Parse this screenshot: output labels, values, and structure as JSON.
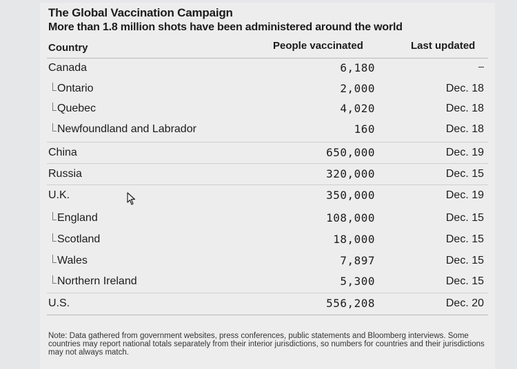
{
  "title": "The Global Vaccination Campaign",
  "subtitle": "More than 1.8 million shots have been administered around the world",
  "columns": {
    "country": "Country",
    "people": "People vaccinated",
    "updated": "Last updated"
  },
  "rows": [
    {
      "country": "Canada",
      "people": "6,180",
      "updated": "",
      "sub": false
    },
    {
      "country": "Ontario",
      "people": "2,000",
      "updated": "Dec. 18",
      "sub": true
    },
    {
      "country": "Quebec",
      "people": "4,020",
      "updated": "Dec. 18",
      "sub": true
    },
    {
      "country": "Newfoundland and Labrador",
      "people": "160",
      "updated": "Dec. 18",
      "sub": true
    },
    {
      "country": "China",
      "people": "650,000",
      "updated": "Dec. 19",
      "sub": false
    },
    {
      "country": "Russia",
      "people": "320,000",
      "updated": "Dec. 15",
      "sub": false
    },
    {
      "country": "U.K.",
      "people": "350,000",
      "updated": "Dec. 19",
      "sub": false
    },
    {
      "country": "England",
      "people": "108,000",
      "updated": "Dec. 15",
      "sub": true
    },
    {
      "country": "Scotland",
      "people": "18,000",
      "updated": "Dec. 15",
      "sub": true
    },
    {
      "country": "Wales",
      "people": "7,897",
      "updated": "Dec. 15",
      "sub": true
    },
    {
      "country": "Northern Ireland",
      "people": "5,300",
      "updated": "Dec. 15",
      "sub": true
    },
    {
      "country": "U.S.",
      "people": "556,208",
      "updated": "Dec. 20",
      "sub": false
    }
  ],
  "note": "Note: Data gathered from government websites, press conferences, public statements and Bloomberg interviews. Some countries may report national totals separately from their interior jurisdictions, so numbers for countries and their jurisdictions may not always match."
}
